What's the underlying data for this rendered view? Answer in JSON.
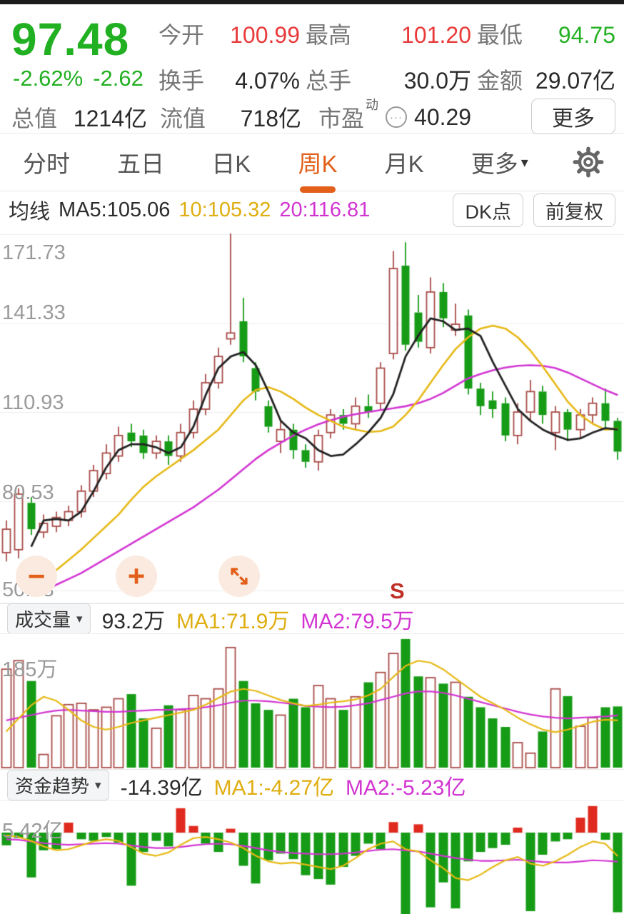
{
  "colors": {
    "green_text": "#21b021",
    "red_text": "#e93a3a",
    "orange": "#e2601a",
    "candle_up": "#a84b47",
    "candle_down": "#169b16",
    "ma5": "#222222",
    "ma10": "#e6b813",
    "ma20": "#d234d2",
    "fund_up": "#e02a1f",
    "grid": "#ededed",
    "axis_text": "#9a9a9a"
  },
  "header": {
    "price": "97.48",
    "change_percent": "-2.62%",
    "change_amount": "-2.62",
    "stats": [
      {
        "label": "今开",
        "value": "100.99"
      },
      {
        "label": "最高",
        "value": "101.20"
      },
      {
        "label": "最低",
        "value": "94.75"
      },
      {
        "label": "换手",
        "value": "4.07%"
      },
      {
        "label": "总手",
        "value": "30.0万"
      },
      {
        "label": "金额",
        "value": "29.07亿"
      }
    ],
    "total_value": {
      "label": "总值",
      "value": "1214亿"
    },
    "float_value": {
      "label": "流值",
      "value": "718亿"
    },
    "pe": {
      "label": "市盈",
      "sup": "动",
      "dots": "···",
      "value": "40.29"
    },
    "more_button": "更多"
  },
  "tabs": {
    "items": [
      "分时",
      "五日",
      "日K",
      "周K",
      "月K"
    ],
    "active": "周K",
    "more": "更多",
    "caret": "▾"
  },
  "ma_bar": {
    "title": "均线",
    "ma5": "MA5:105.06",
    "ma10": "10:105.32",
    "ma20": "20:116.81",
    "dk_button": "DK点",
    "fq_button": "前复权"
  },
  "main_chart": {
    "y_tick_labels": [
      "171.73",
      "141.33",
      "110.93",
      "80.53",
      "50.13"
    ],
    "signal_marker": "S",
    "zoom_out_glyph": "−",
    "zoom_in_glyph": "+"
  },
  "volume_panel": {
    "title": "成交量",
    "caret": "▾",
    "current": "93.2万",
    "ma1": "MA1:71.9万",
    "ma2": "MA2:79.5万",
    "axis_label": "185万"
  },
  "fund_panel": {
    "title": "资金趋势",
    "caret": "▾",
    "current": "-14.39亿",
    "ma1": "MA1:-4.27亿",
    "ma2": "MA2:-5.23亿",
    "axis_label": "5.42亿"
  },
  "chart_data": [
    {
      "type": "candlestick",
      "title": "周K",
      "ylim": [
        50.13,
        171.73
      ],
      "y_ticks": [
        171.73,
        141.33,
        110.93,
        80.53,
        50.13
      ],
      "candles": [
        [
          63,
          71,
          74,
          60
        ],
        [
          64,
          83,
          85,
          61
        ],
        [
          80,
          71,
          82,
          69
        ],
        [
          70,
          73,
          76,
          68
        ],
        [
          72,
          75,
          77,
          70
        ],
        [
          74,
          77,
          79,
          72
        ],
        [
          77,
          84,
          86,
          75
        ],
        [
          84,
          91,
          93,
          82
        ],
        [
          90,
          97,
          100,
          88
        ],
        [
          96,
          103,
          106,
          94
        ],
        [
          104,
          101,
          107,
          99
        ],
        [
          103,
          97,
          105,
          95
        ],
        [
          97,
          101,
          103,
          95
        ],
        [
          101,
          96,
          103,
          93
        ],
        [
          96,
          104,
          107,
          94
        ],
        [
          104,
          112,
          115,
          102
        ],
        [
          112,
          121,
          124,
          110
        ],
        [
          121,
          130,
          133,
          119
        ],
        [
          136,
          138,
          172,
          134
        ],
        [
          142,
          130,
          150,
          128
        ],
        [
          126,
          118,
          128,
          115
        ],
        [
          113,
          106,
          115,
          104
        ],
        [
          101,
          105,
          108,
          97
        ],
        [
          105,
          98,
          107,
          95
        ],
        [
          98,
          94,
          100,
          92
        ],
        [
          94,
          103,
          105,
          91
        ],
        [
          104,
          110,
          112,
          102
        ],
        [
          110,
          107,
          112,
          105
        ],
        [
          107,
          113,
          116,
          105
        ],
        [
          113,
          111,
          117,
          109
        ],
        [
          114,
          126,
          128,
          112
        ],
        [
          131,
          160,
          166,
          129
        ],
        [
          161,
          134,
          169,
          132
        ],
        [
          145,
          135,
          151,
          133
        ],
        [
          133,
          152,
          157,
          131
        ],
        [
          152,
          143,
          155,
          140
        ],
        [
          139,
          141,
          148,
          137
        ],
        [
          144,
          119,
          146,
          117
        ],
        [
          119,
          113,
          121,
          110
        ],
        [
          115,
          112,
          118,
          109
        ],
        [
          114,
          103,
          116,
          101
        ],
        [
          103,
          111,
          114,
          100
        ],
        [
          111,
          118,
          122,
          108
        ],
        [
          118,
          110,
          120,
          107
        ],
        [
          104,
          111,
          113,
          98
        ],
        [
          111,
          105,
          112,
          101
        ],
        [
          105,
          110,
          112,
          102
        ],
        [
          110,
          114,
          116,
          107
        ],
        [
          114,
          108,
          119,
          105
        ],
        [
          108,
          97.48,
          109,
          94.75
        ]
      ],
      "series": [
        {
          "name": "MA5",
          "color_key": "ma5",
          "values": [
            null,
            null,
            65,
            74,
            74.5,
            74,
            77,
            84,
            92,
            98,
            100,
            100,
            99,
            97,
            99,
            106,
            117,
            126,
            130,
            131.5,
            127,
            118,
            108,
            104,
            102,
            98,
            96,
            96.5,
            100,
            104,
            109,
            117,
            130,
            137,
            143,
            142,
            139,
            139.5,
            137,
            128,
            120,
            112,
            108,
            105,
            103,
            101.5,
            102,
            104,
            105.5,
            105.06
          ]
        },
        {
          "name": "MA10",
          "color_key": "ma10",
          "values": [
            null,
            null,
            50,
            53.5,
            57,
            60.5,
            64,
            68,
            72,
            76,
            81,
            85.5,
            89,
            92,
            95,
            98,
            101.5,
            105,
            110,
            115,
            118.5,
            119.5,
            118,
            115.5,
            112.5,
            110,
            108,
            106,
            105,
            104.2,
            104.5,
            106,
            110,
            115,
            121,
            127,
            132.5,
            136.5,
            139.5,
            140.5,
            139.5,
            136.5,
            132,
            126.5,
            120.5,
            114.5,
            110,
            107,
            105,
            105.32
          ]
        },
        {
          "name": "MA20",
          "color_key": "ma20",
          "values": [
            null,
            null,
            null,
            50,
            52,
            54,
            56,
            58.5,
            61,
            63.5,
            66,
            68.5,
            71,
            73.5,
            76,
            78.5,
            81.5,
            84.5,
            88,
            91.5,
            95,
            98,
            100.5,
            103,
            105,
            106.8,
            108.2,
            109.4,
            110.3,
            111,
            111.7,
            112.3,
            113,
            114,
            115.5,
            117.5,
            120,
            122.5,
            124,
            125.3,
            126.2,
            126.8,
            127,
            126.8,
            126,
            124.5,
            122.5,
            120.5,
            118.5,
            116.81
          ]
        }
      ],
      "signal": {
        "label": "S",
        "index": 31
      }
    },
    {
      "type": "bar",
      "title": "成交量(万)",
      "ylim": [
        0,
        201
      ],
      "axis_label": "185万",
      "values": [
        150,
        163,
        132,
        20,
        79,
        96,
        98,
        88,
        92,
        105,
        112,
        75,
        60,
        95,
        88,
        110,
        105,
        120,
        183,
        132,
        98,
        88,
        80,
        105,
        92,
        125,
        105,
        88,
        108,
        130,
        145,
        174,
        196,
        139,
        137,
        128,
        130,
        108,
        92,
        75,
        62,
        38,
        22,
        55,
        120,
        109,
        63,
        76,
        92,
        93.2
      ],
      "series": [
        {
          "name": "MA1",
          "color_key": "ma10",
          "values": [
            55,
            75,
            95,
            108,
            102,
            88,
            72,
            62,
            58,
            62,
            68,
            72,
            76,
            80,
            84,
            88,
            96,
            106,
            116,
            120,
            117,
            110,
            103,
            98,
            94,
            96,
            99,
            101,
            104,
            110,
            120,
            138,
            155,
            163,
            160,
            150,
            136,
            122,
            108,
            98,
            88,
            76,
            66,
            58,
            54,
            58,
            64,
            70,
            73,
            71.9
          ]
        },
        {
          "name": "MA2",
          "color_key": "ma20",
          "values": [
            72,
            76,
            80,
            84,
            87,
            88,
            87,
            86,
            85,
            85,
            86,
            87,
            88,
            88,
            89,
            90,
            92,
            95,
            99,
            102,
            102,
            101,
            99,
            97,
            94,
            93,
            92,
            93,
            95,
            98,
            103,
            108,
            113,
            116,
            116,
            114,
            110,
            105,
            100,
            95,
            90,
            85,
            81,
            78,
            76,
            75,
            76,
            77,
            78,
            79.5
          ]
        }
      ]
    },
    {
      "type": "bar",
      "title": "资金趋势(亿)",
      "ylim": [
        -15.3,
        5.42
      ],
      "axis_label": "5.42亿",
      "values": [
        -2.3,
        -1.0,
        -8.1,
        -3.2,
        -3.0,
        1.8,
        -1.2,
        -1.5,
        -0.8,
        -1.8,
        -9.6,
        -3.5,
        -1.5,
        -2.5,
        4.4,
        1.2,
        -2.0,
        -3.5,
        0.7,
        -6.0,
        -9.2,
        -5.0,
        -3.8,
        -4.8,
        -7.7,
        -8.4,
        -9.4,
        -6.2,
        -4.2,
        -2.0,
        -3.0,
        1.9,
        -15.2,
        1.5,
        -13.5,
        -9.0,
        -13.7,
        -5.2,
        -3.5,
        -2.8,
        -2.2,
        0.9,
        -14.2,
        -4.0,
        -1.6,
        -1.2,
        2.7,
        4.8,
        -1.3,
        -14.39
      ],
      "series": [
        {
          "name": "MA1",
          "color_key": "ma10",
          "values": [
            -0.5,
            -0.8,
            -1.5,
            -2.5,
            -3.2,
            -3.0,
            -2.3,
            -1.6,
            -1.2,
            -1.5,
            -2.6,
            -3.8,
            -4.2,
            -3.6,
            -2.2,
            -1.0,
            -0.8,
            -1.2,
            -1.8,
            -2.8,
            -4.2,
            -5.2,
            -5.6,
            -5.4,
            -5.8,
            -6.2,
            -6.6,
            -6.0,
            -4.6,
            -3.0,
            -2.0,
            -1.6,
            -3.0,
            -3.4,
            -5.0,
            -6.4,
            -8.2,
            -8.6,
            -7.6,
            -6.2,
            -5.0,
            -4.4,
            -5.6,
            -6.0,
            -5.2,
            -4.0,
            -2.6,
            -1.6,
            -2.0,
            -4.27
          ]
        },
        {
          "name": "MA2",
          "color_key": "ma20",
          "values": [
            -1.2,
            -1.3,
            -1.6,
            -1.9,
            -2.1,
            -2.2,
            -2.1,
            -2.0,
            -1.9,
            -2.0,
            -2.3,
            -2.6,
            -2.8,
            -2.8,
            -2.6,
            -2.3,
            -2.1,
            -2.0,
            -2.1,
            -2.4,
            -2.8,
            -3.2,
            -3.5,
            -3.7,
            -3.8,
            -3.9,
            -3.9,
            -3.8,
            -3.6,
            -3.3,
            -3.1,
            -3.0,
            -3.2,
            -3.4,
            -3.8,
            -4.2,
            -4.6,
            -4.9,
            -5.1,
            -5.1,
            -5.0,
            -4.9,
            -5.1,
            -5.3,
            -5.4,
            -5.4,
            -5.2,
            -5.0,
            -5.1,
            -5.23
          ]
        }
      ]
    }
  ]
}
